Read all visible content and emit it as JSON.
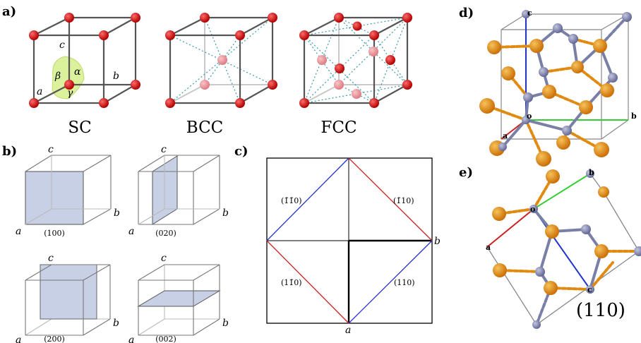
{
  "panels": {
    "a": {
      "label": "a)",
      "lattices": [
        "SC",
        "BCC",
        "FCC"
      ],
      "axes": {
        "a": "a",
        "b": "b",
        "c": "c"
      },
      "angles": {
        "alpha": "α",
        "beta": "β",
        "gamma": "γ"
      }
    },
    "b": {
      "label": "b)",
      "planes": [
        "(100)",
        "(020)",
        "(200)",
        "(002)"
      ],
      "axes": {
        "a": "a",
        "b": "b",
        "c": "c"
      }
    },
    "c": {
      "label": "c)",
      "planes": {
        "top_left": "(1̄1̄0)",
        "top_right": "(1̄10)",
        "bottom_left": "(11̄0)",
        "bottom_right": "(110)"
      },
      "axes": {
        "a": "a",
        "b": "b"
      }
    },
    "d": {
      "label": "d)",
      "axes": {
        "a": "a",
        "b": "b",
        "c": "c",
        "o": "o"
      }
    },
    "e": {
      "label": "e)",
      "axes": {
        "a": "a",
        "b": "b",
        "c": "c",
        "o": "o"
      },
      "plane": "(110)"
    }
  },
  "colors": {
    "atom_red": "#d40000",
    "atom_pink": "#e8959a",
    "angle_fill": "#d7ef8a",
    "plane_fill": "#c8d0e6",
    "dotted": "#3a9aa6",
    "line_red": "#cc2222",
    "line_blue": "#2233cc",
    "line_green": "#33cc33",
    "orange_atom": "#e08a10",
    "purple_atom": "#7a7fa6"
  }
}
